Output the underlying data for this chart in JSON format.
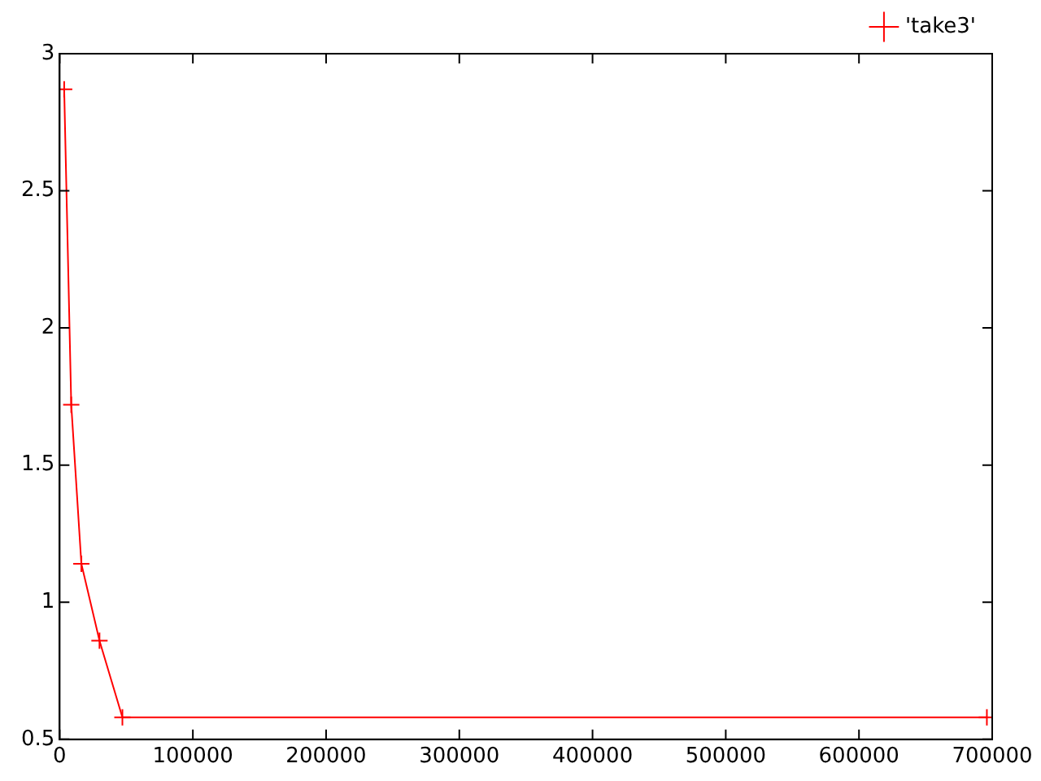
{
  "chart_data": {
    "type": "line",
    "x": [
      3400,
      8700,
      16300,
      29900,
      47100,
      696000
    ],
    "series": [
      {
        "name": "'take3'",
        "color": "#ff0000",
        "values": [
          2.87,
          1.72,
          1.14,
          0.86,
          0.58,
          0.58
        ]
      }
    ],
    "xlim": [
      0,
      700000
    ],
    "xticks": [
      0,
      100000,
      200000,
      300000,
      400000,
      500000,
      600000,
      700000
    ],
    "ylim": [
      0.5,
      3
    ],
    "yticks": [
      0.5,
      1,
      1.5,
      2,
      2.5,
      3
    ],
    "grid": false,
    "legend": "top right",
    "marker": "cross",
    "line_style": "solid"
  }
}
